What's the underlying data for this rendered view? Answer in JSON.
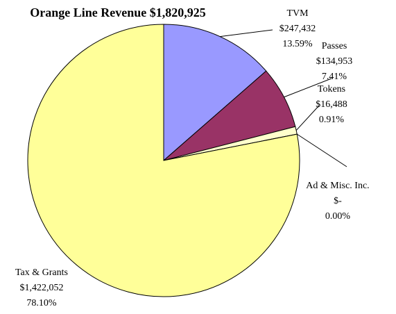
{
  "chart_data": {
    "type": "pie",
    "title": "Orange Line Revenue $1,820,925",
    "categories": [
      "TVM",
      "Passes",
      "Tokens",
      "Ad & Misc. Inc.",
      "Tax & Grants"
    ],
    "values": [
      247432,
      134953,
      16488,
      0,
      1422052
    ],
    "value_labels": [
      "$247,432",
      "$134,953",
      "$16,488",
      "$-",
      "$1,422,052"
    ],
    "percents": [
      13.59,
      7.41,
      0.91,
      0.0,
      78.1
    ],
    "percent_labels": [
      "13.59%",
      "7.41%",
      "0.91%",
      "0.00%",
      "78.10%"
    ],
    "colors": [
      "#9999ff",
      "#993366",
      "#ffffcc",
      "#ffffff",
      "#ffff99"
    ]
  }
}
